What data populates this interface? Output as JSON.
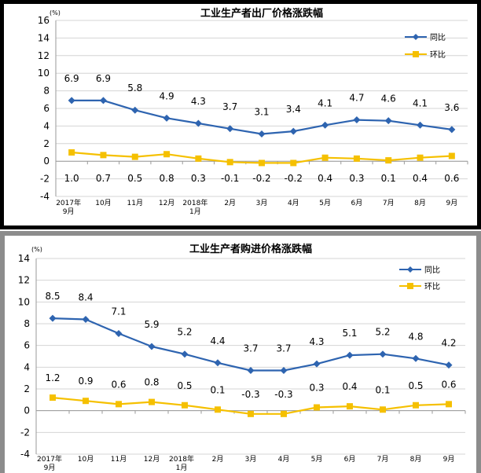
{
  "chart_data": [
    {
      "type": "line",
      "title": "工业生产者出厂价格涨跌幅",
      "unit_label": "(%)",
      "categories": [
        [
          "2017年",
          "9月"
        ],
        [
          "10月"
        ],
        [
          "11月"
        ],
        [
          "12月"
        ],
        [
          "2018年",
          "1月"
        ],
        [
          "2月"
        ],
        [
          "3月"
        ],
        [
          "4月"
        ],
        [
          "5月"
        ],
        [
          "6月"
        ],
        [
          "7月"
        ],
        [
          "8月"
        ],
        [
          "9月"
        ]
      ],
      "ylim": [
        -4,
        16
      ],
      "yticks": [
        -4,
        -2,
        0,
        2,
        4,
        6,
        8,
        10,
        12,
        14,
        16
      ],
      "grid": true,
      "legend_position": "top-right",
      "series": [
        {
          "name": "同比",
          "color": "#2e64b0",
          "marker": "diamond",
          "values": [
            6.9,
            6.9,
            5.8,
            4.9,
            4.3,
            3.7,
            3.1,
            3.4,
            4.1,
            4.7,
            4.6,
            4.1,
            3.6
          ]
        },
        {
          "name": "环比",
          "color": "#f5c000",
          "marker": "square",
          "values": [
            1.0,
            0.7,
            0.5,
            0.8,
            0.3,
            -0.1,
            -0.2,
            -0.2,
            0.4,
            0.3,
            0.1,
            0.4,
            0.6
          ]
        }
      ]
    },
    {
      "type": "line",
      "title": "工业生产者购进价格涨跌幅",
      "unit_label": "(%)",
      "categories": [
        [
          "2017年",
          "9月"
        ],
        [
          "10月"
        ],
        [
          "11月"
        ],
        [
          "12月"
        ],
        [
          "2018年",
          "1月"
        ],
        [
          "2月"
        ],
        [
          "3月"
        ],
        [
          "4月"
        ],
        [
          "5月"
        ],
        [
          "6月"
        ],
        [
          "7月"
        ],
        [
          "8月"
        ],
        [
          "9月"
        ]
      ],
      "ylim": [
        -4,
        14
      ],
      "yticks": [
        -4,
        -2,
        0,
        2,
        4,
        6,
        8,
        10,
        12,
        14
      ],
      "grid": true,
      "legend_position": "top-right",
      "series": [
        {
          "name": "同比",
          "color": "#2e64b0",
          "marker": "diamond",
          "values": [
            8.5,
            8.4,
            7.1,
            5.9,
            5.2,
            4.4,
            3.7,
            3.7,
            4.3,
            5.1,
            5.2,
            4.8,
            4.2
          ]
        },
        {
          "name": "环比",
          "color": "#f5c000",
          "marker": "square",
          "values": [
            1.2,
            0.9,
            0.6,
            0.8,
            0.5,
            0.1,
            -0.3,
            -0.3,
            0.3,
            0.4,
            0.1,
            0.5,
            0.6
          ]
        }
      ]
    }
  ]
}
